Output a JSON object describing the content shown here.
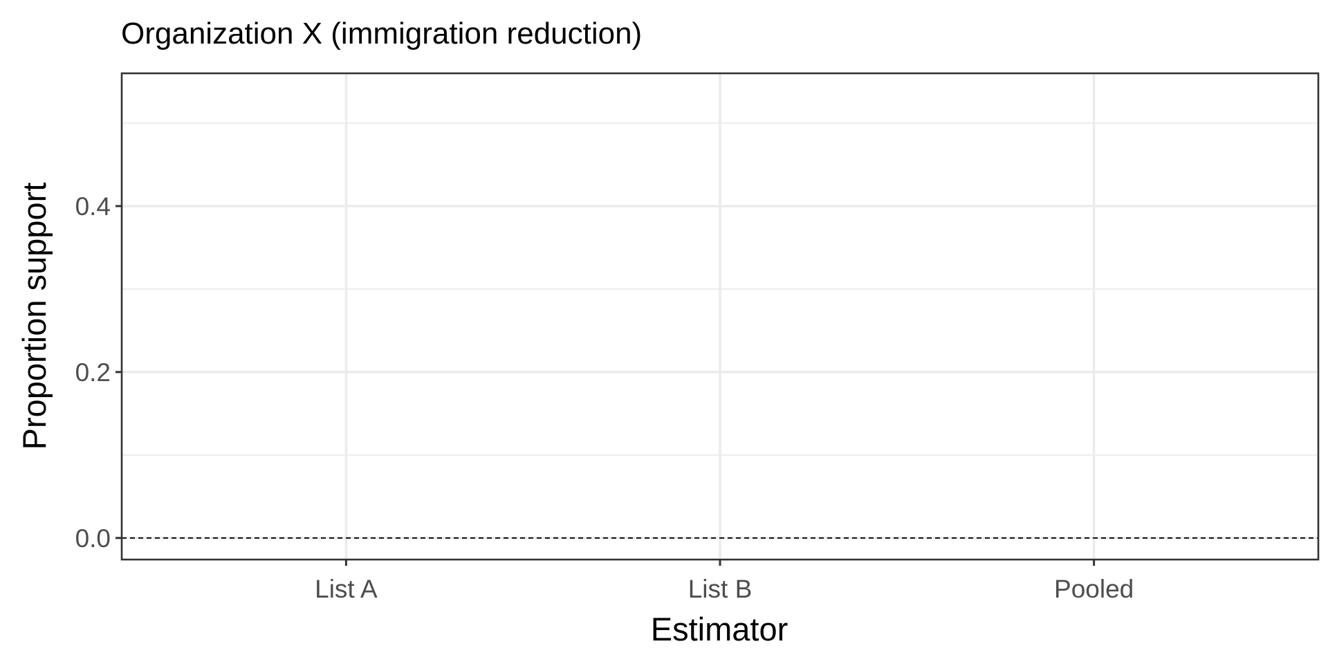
{
  "chart_data": {
    "type": "scatter",
    "title": "Organization X (immigration reduction)",
    "xlabel": "Estimator",
    "ylabel": "Proportion support",
    "categories": [
      "List A",
      "List B",
      "Pooled"
    ],
    "series": [],
    "ylim": [
      -0.026,
      0.56
    ],
    "yticks": [
      0.0,
      0.2,
      0.4
    ],
    "ytick_labels": [
      "0.0",
      "0.2",
      "0.4"
    ],
    "yminor": [
      0.1,
      0.3,
      0.5
    ],
    "reference_line": {
      "y": 0,
      "style": "dashed",
      "color": "#000000"
    },
    "grid": true,
    "legend": "none",
    "theme": "bw"
  }
}
